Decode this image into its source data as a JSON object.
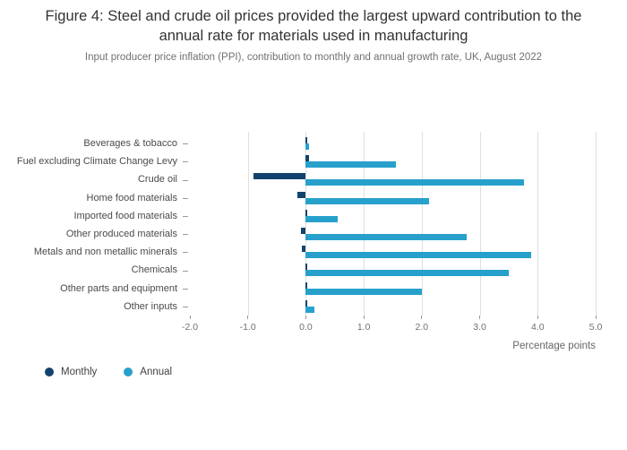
{
  "figure": {
    "title": "Figure 4: Steel and crude oil prices provided the largest upward contribution to the annual rate for materials used in manufacturing",
    "subtitle": "Input producer price inflation (PPI), contribution to monthly and annual growth rate, UK, August 2022"
  },
  "chart_data": {
    "type": "bar",
    "orientation": "horizontal",
    "title": "Figure 4: Steel and crude oil prices provided the largest upward contribution to the annual rate for materials used in manufacturing",
    "subtitle": "Input producer price inflation (PPI), contribution to monthly and annual growth rate, UK, August 2022",
    "categories": [
      "Beverages & tobacco",
      "Fuel excluding Climate Change Levy",
      "Crude oil",
      "Home food materials",
      "Imported food materials",
      "Other produced materials",
      "Metals and non metallic minerals",
      "Chemicals",
      "Other parts and equipment",
      "Other inputs"
    ],
    "series": [
      {
        "name": "Monthly",
        "color": "#12436D",
        "values": [
          0.02,
          0.06,
          -0.9,
          -0.15,
          0.01,
          -0.08,
          -0.07,
          0.02,
          0.01,
          0.01
        ]
      },
      {
        "name": "Annual",
        "color": "#27A0CC",
        "values": [
          0.05,
          1.55,
          3.76,
          2.12,
          0.55,
          2.78,
          3.88,
          3.5,
          2.0,
          0.15
        ]
      }
    ],
    "xlabel": "Percentage points",
    "ylabel": "",
    "x_ticks": [
      -2,
      -1,
      0,
      1,
      2,
      3,
      4,
      5
    ],
    "xlim": [
      -2,
      5
    ],
    "grid": true,
    "legend_position": "bottom-left"
  }
}
